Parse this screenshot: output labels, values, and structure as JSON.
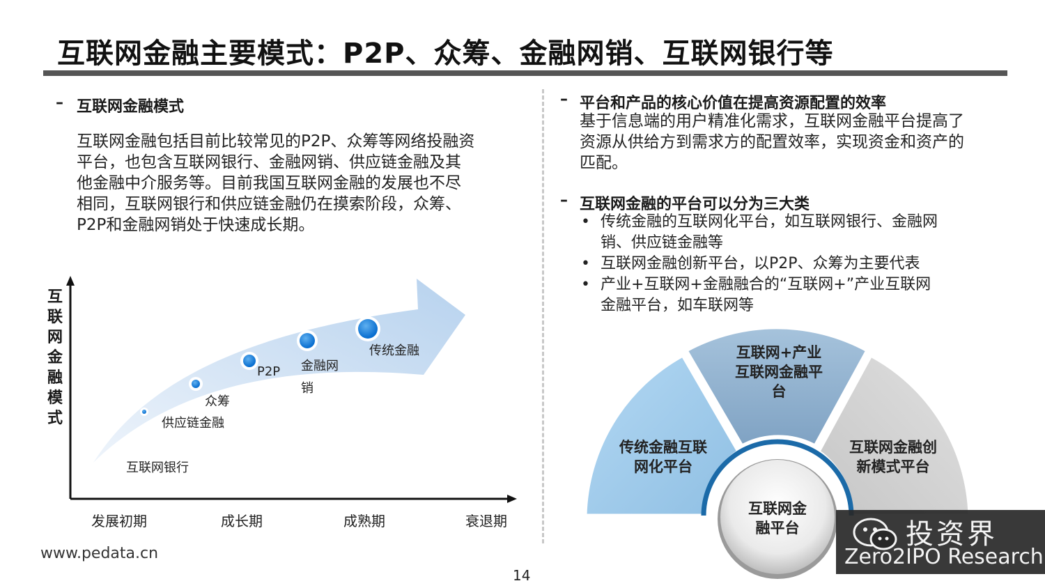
{
  "title": "互联网金融主要模式：P2P、众筹、金融网销、互联网银行等",
  "left": {
    "heading_dash": "–",
    "heading": "互联网金融模式",
    "paragraph_lines": [
      "互联网金融包括目前比较常见的P2P、众筹等网络投融资",
      "平台，也包含互联网银行、金融网销、供应链金融及其",
      "他金融中介服务等。目前我国互联网金融的发展也不尽",
      "相同，互联网银行和供应链金融仍在摸索阶段，众筹、",
      "P2P和金融网销处于快速成长期。"
    ]
  },
  "chart": {
    "y_axis_label": [
      "互",
      "联",
      "网",
      "金",
      "融",
      "模",
      "式"
    ],
    "x_ticks": [
      "发展初期",
      "成长期",
      "成熟期",
      "衰退期"
    ],
    "stages": [
      "互联网银行",
      "供应链金融",
      "众筹",
      "P2P",
      "金融网",
      "销",
      "传统金融"
    ]
  },
  "right": {
    "section1_dash": "–",
    "section1_heading": "平台和产品的核心价值在提高资源配置的效率",
    "section1_lines": [
      "基于信息端的用户精准化需求，互联网金融平台提高了",
      "资源从供给方到需求方的配置效率，实现资金和资产的",
      "匹配。"
    ],
    "section2_dash": "–",
    "section2_heading": "互联网金融的平台可以分为三大类",
    "bullet_symbol": "•",
    "bullets": [
      [
        "传统金融的互联网化平台，如互联网银行、金融网",
        "销、供应链金融等"
      ],
      [
        "互联网金融创新平台，以P2P、众筹为主要代表"
      ],
      [
        "产业+互联网+金融融合的“互联网+”产业互联网",
        "金融平台，如车联网等"
      ]
    ]
  },
  "diagram": {
    "left_segment": [
      "传统金融互联",
      "网化平台"
    ],
    "top_segment": [
      "互联网+产业",
      "互联网金融平",
      "台"
    ],
    "right_segment": [
      "互联网金融创",
      "新模式平台"
    ],
    "center": [
      "互联网金",
      "融平台"
    ],
    "colors": {
      "left": "#9dc8e8",
      "top": "#8aabc9",
      "right": "#cfcfcf",
      "center_ring": "#1b6aa8"
    }
  },
  "footer": {
    "url": "www.pedata.cn",
    "page": "14",
    "watermark_cn": "投资界",
    "watermark_en": "Zero2IPO Research"
  }
}
